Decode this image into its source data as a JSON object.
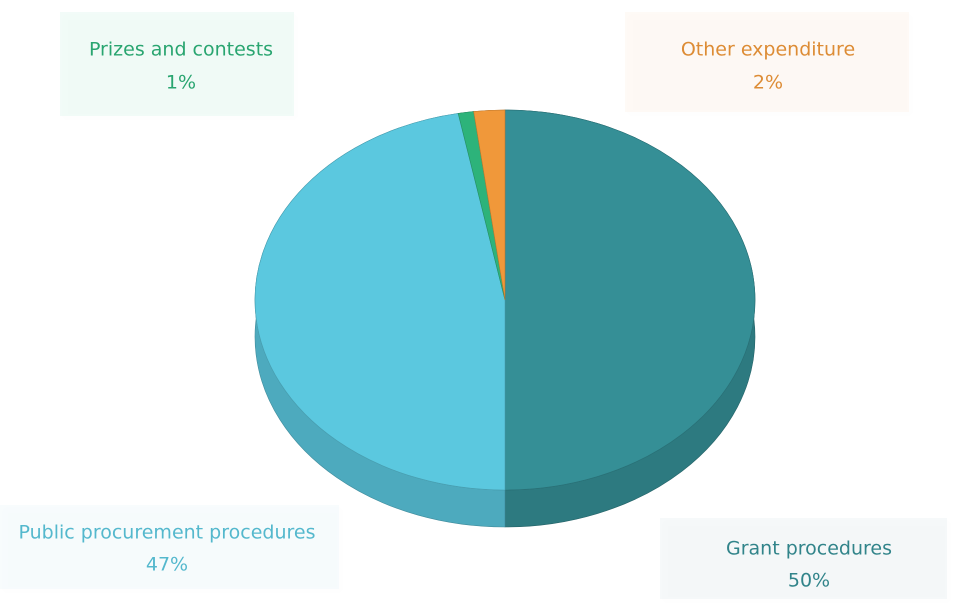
{
  "chart_data": {
    "type": "pie",
    "categories": [
      "Grant procedures",
      "Public procurement procedures",
      "Prizes and contests",
      "Other expenditure"
    ],
    "values": [
      50,
      47,
      1,
      2
    ],
    "value_labels": [
      "50%",
      "47%",
      "1%",
      "2%"
    ],
    "colors": [
      "#358f96",
      "#5bc8df",
      "#2db37a",
      "#f0983a"
    ]
  }
}
